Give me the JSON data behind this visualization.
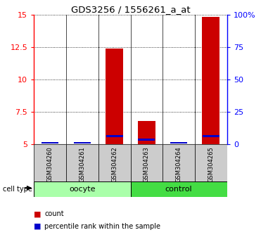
{
  "title": "GDS3256 / 1556261_a_at",
  "samples": [
    "GSM304260",
    "GSM304261",
    "GSM304262",
    "GSM304263",
    "GSM304264",
    "GSM304265"
  ],
  "count_values": [
    5.02,
    5.02,
    12.4,
    6.8,
    5.02,
    14.85
  ],
  "percentile_values": [
    5.05,
    5.05,
    5.55,
    5.28,
    5.05,
    5.55
  ],
  "percentile_heights": [
    0.15,
    0.15,
    0.15,
    0.15,
    0.15,
    0.15
  ],
  "ylim_left": [
    5,
    15
  ],
  "yticks_left": [
    5,
    7.5,
    10,
    12.5,
    15
  ],
  "ytick_labels_left": [
    "5",
    "7.5",
    "10",
    "12.5",
    "15"
  ],
  "ylim_right": [
    0,
    100
  ],
  "yticks_right": [
    0,
    25,
    50,
    75,
    100
  ],
  "ytick_labels_right": [
    "0",
    "25",
    "50",
    "75",
    "100%"
  ],
  "groups": [
    {
      "label": "oocyte",
      "indices": [
        0,
        1,
        2
      ],
      "color": "#AAFFAA"
    },
    {
      "label": "control",
      "indices": [
        3,
        4,
        5
      ],
      "color": "#44DD44"
    }
  ],
  "bar_color": "#CC0000",
  "percentile_color": "#0000CC",
  "bar_width": 0.55,
  "background_label_color": "#CCCCCC",
  "legend_items": [
    "count",
    "percentile rank within the sample"
  ],
  "cell_type_label": "cell type"
}
